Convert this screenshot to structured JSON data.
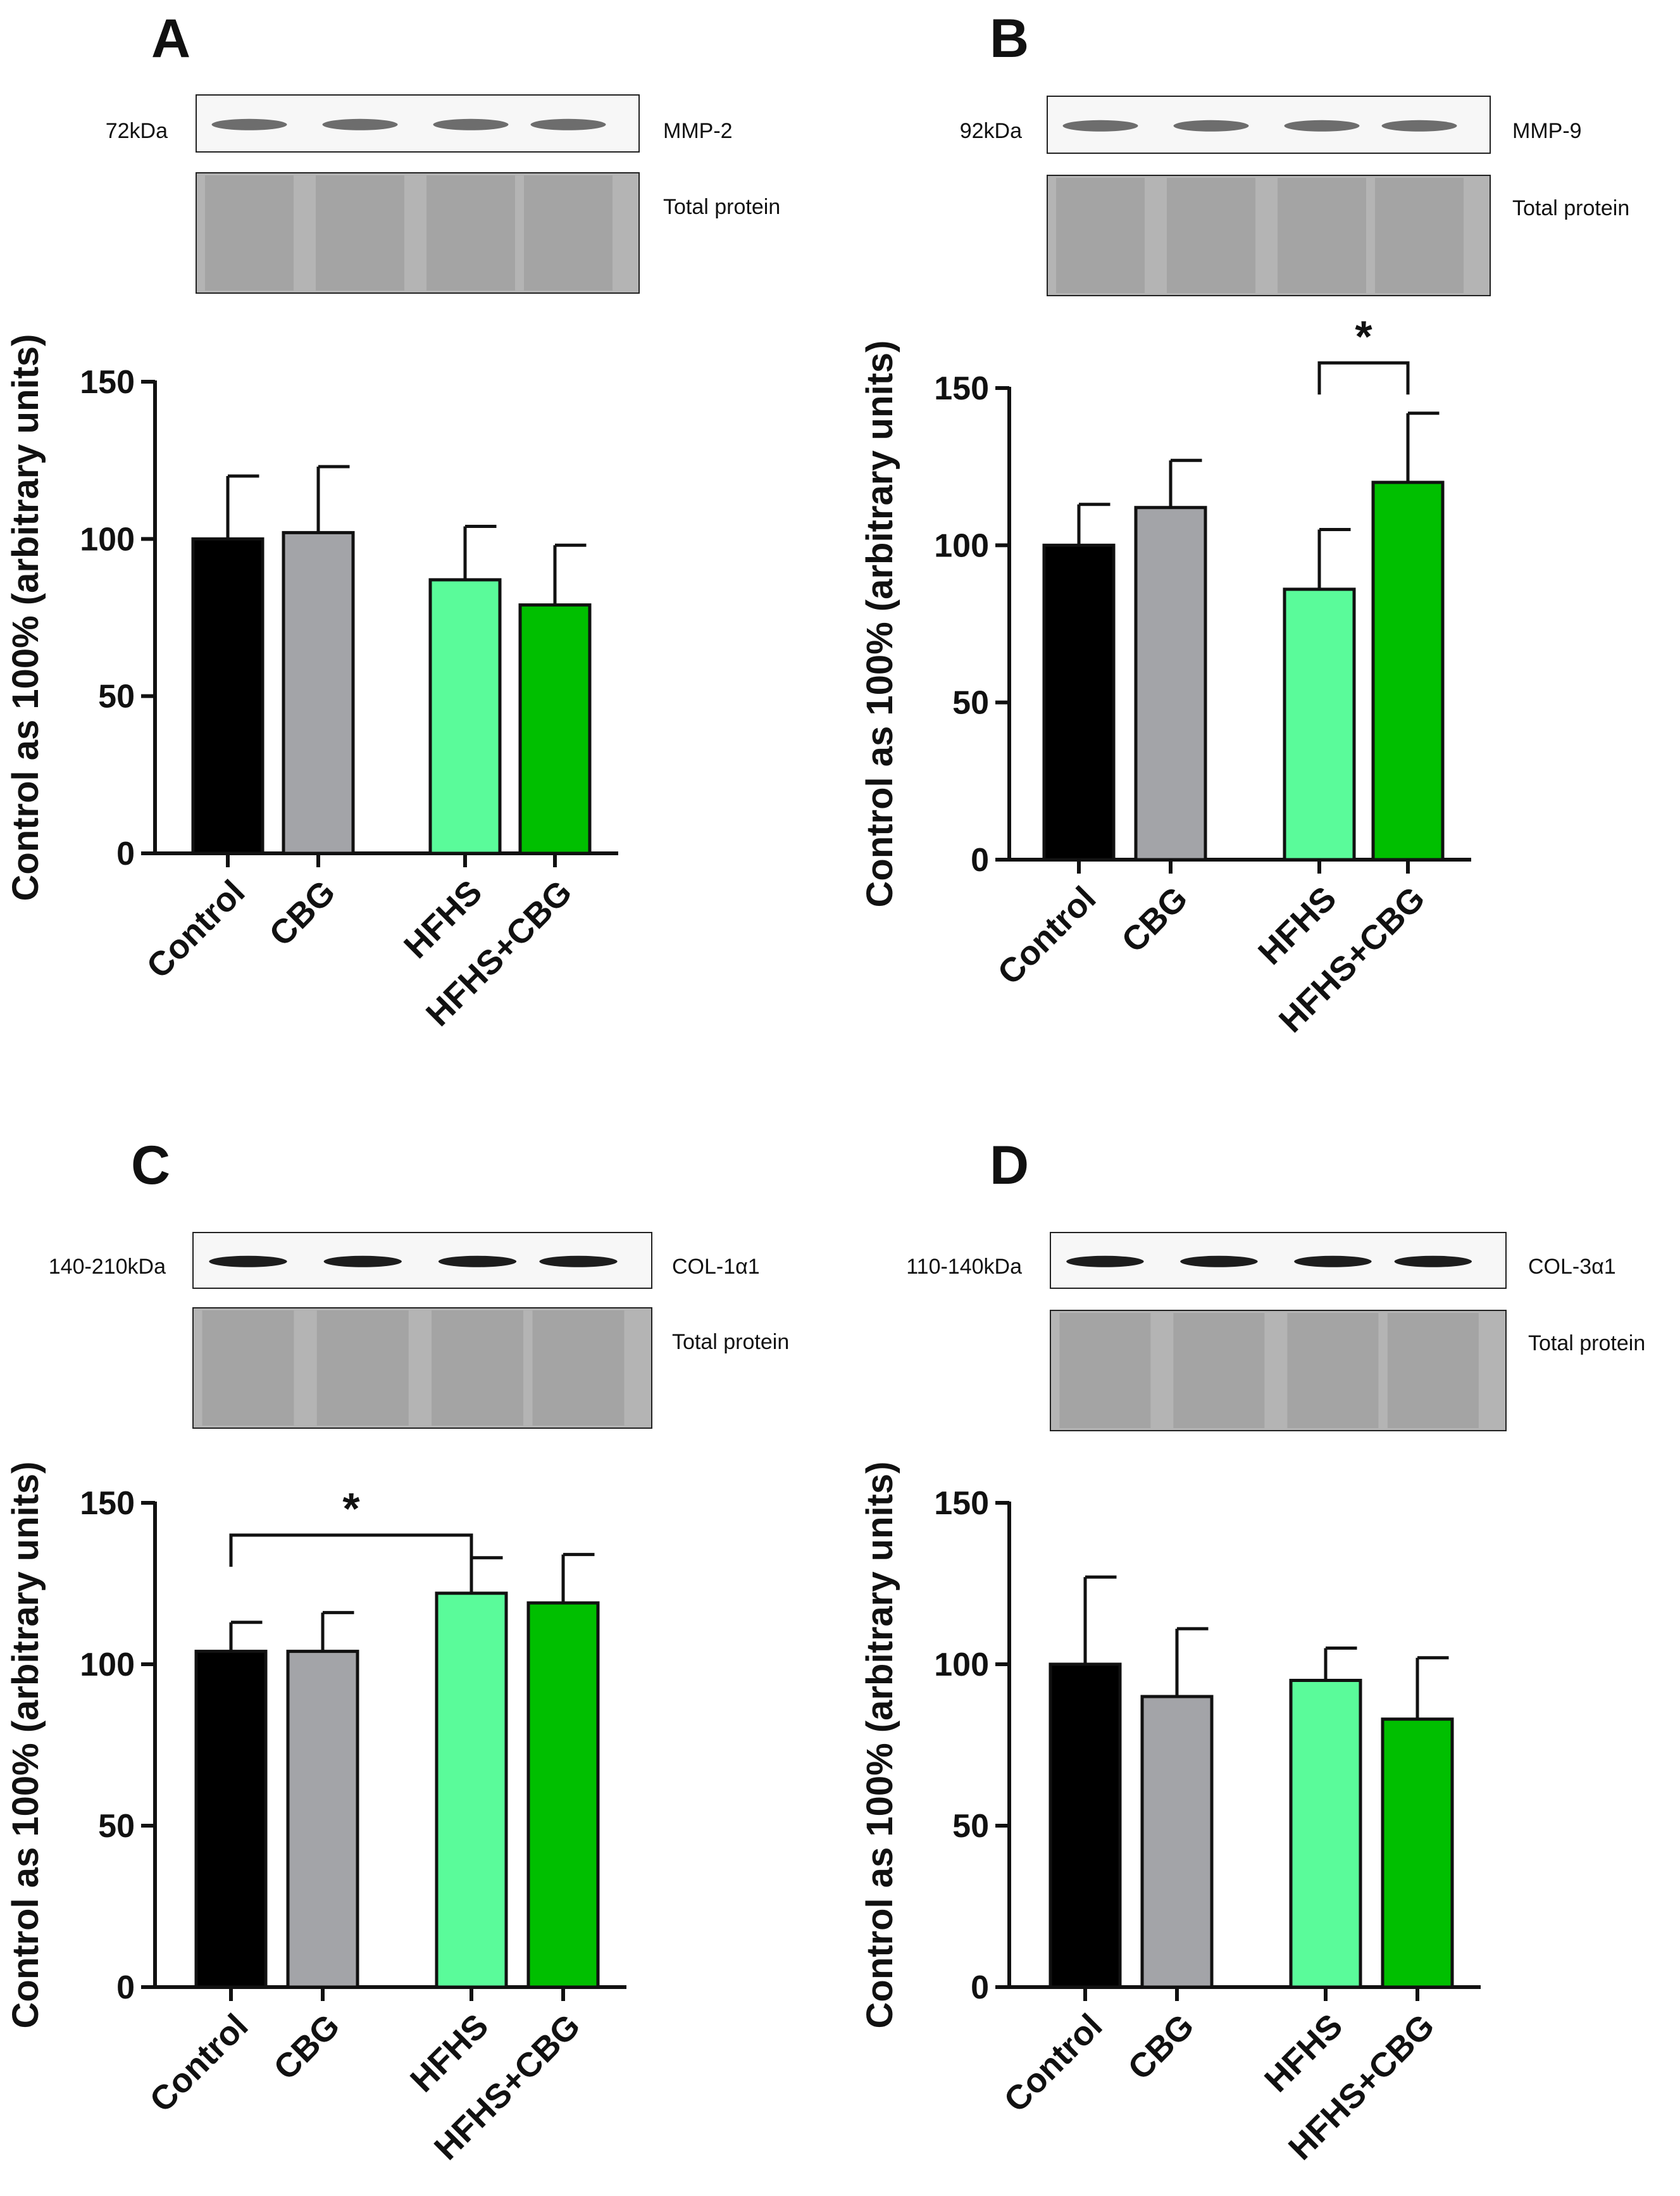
{
  "figure": {
    "title": "",
    "group_colors": {
      "Control": "#000000",
      "CBG": "#a3a4a8",
      "HFHS": "#5afb9a",
      "HFHS+CBG": "#00bf00"
    },
    "bar_outline_color": "#111111"
  },
  "chart_data": [
    {
      "panel": "A",
      "type": "bar",
      "categories": [
        "Control",
        "CBG",
        "HFHS",
        "HFHS+CBG"
      ],
      "values": [
        100,
        102,
        87,
        79
      ],
      "errors": [
        20,
        21,
        17,
        19
      ],
      "ylabel": "Control as 100% (arbitrary units)",
      "xlabel": "",
      "ylim": [
        0,
        150
      ],
      "yticks": [
        0,
        50,
        100,
        150
      ],
      "significance": [],
      "blot": {
        "marker": "72kDa",
        "target": "MMP-2",
        "loading": "Total protein"
      }
    },
    {
      "panel": "B",
      "type": "bar",
      "categories": [
        "Control",
        "CBG",
        "HFHS",
        "HFHS+CBG"
      ],
      "values": [
        100,
        112,
        86,
        120
      ],
      "errors": [
        13,
        15,
        19,
        22
      ],
      "ylabel": "Control as 100% (arbitrary units)",
      "xlabel": "",
      "ylim": [
        0,
        150
      ],
      "yticks": [
        0,
        50,
        100,
        150
      ],
      "significance": [
        {
          "from": 2,
          "to": 3,
          "y": 158,
          "label": "*"
        }
      ],
      "blot": {
        "marker": "92kDa",
        "target": "MMP-9",
        "loading": "Total protein"
      }
    },
    {
      "panel": "C",
      "type": "bar",
      "categories": [
        "Control",
        "CBG",
        "HFHS",
        "HFHS+CBG"
      ],
      "values": [
        104,
        104,
        122,
        119
      ],
      "errors": [
        9,
        12,
        11,
        15
      ],
      "ylabel": "Control as 100% (arbitrary units)",
      "xlabel": "",
      "ylim": [
        0,
        150
      ],
      "yticks": [
        0,
        50,
        100,
        150
      ],
      "significance": [
        {
          "from": 0,
          "to": 2,
          "y": 140,
          "label": "*"
        }
      ],
      "blot": {
        "marker": "140-210kDa",
        "target": "COL-1α1",
        "loading": "Total protein"
      }
    },
    {
      "panel": "D",
      "type": "bar",
      "categories": [
        "Control",
        "CBG",
        "HFHS",
        "HFHS+CBG"
      ],
      "values": [
        100,
        90,
        95,
        83
      ],
      "errors": [
        27,
        21,
        10,
        19
      ],
      "ylabel": "Control as 100% (arbitrary units)",
      "xlabel": "",
      "ylim": [
        0,
        150
      ],
      "yticks": [
        0,
        50,
        100,
        150
      ],
      "significance": [],
      "blot": {
        "marker": "110-140kDa",
        "target": "COL-3α1",
        "loading": "Total protein"
      }
    }
  ]
}
